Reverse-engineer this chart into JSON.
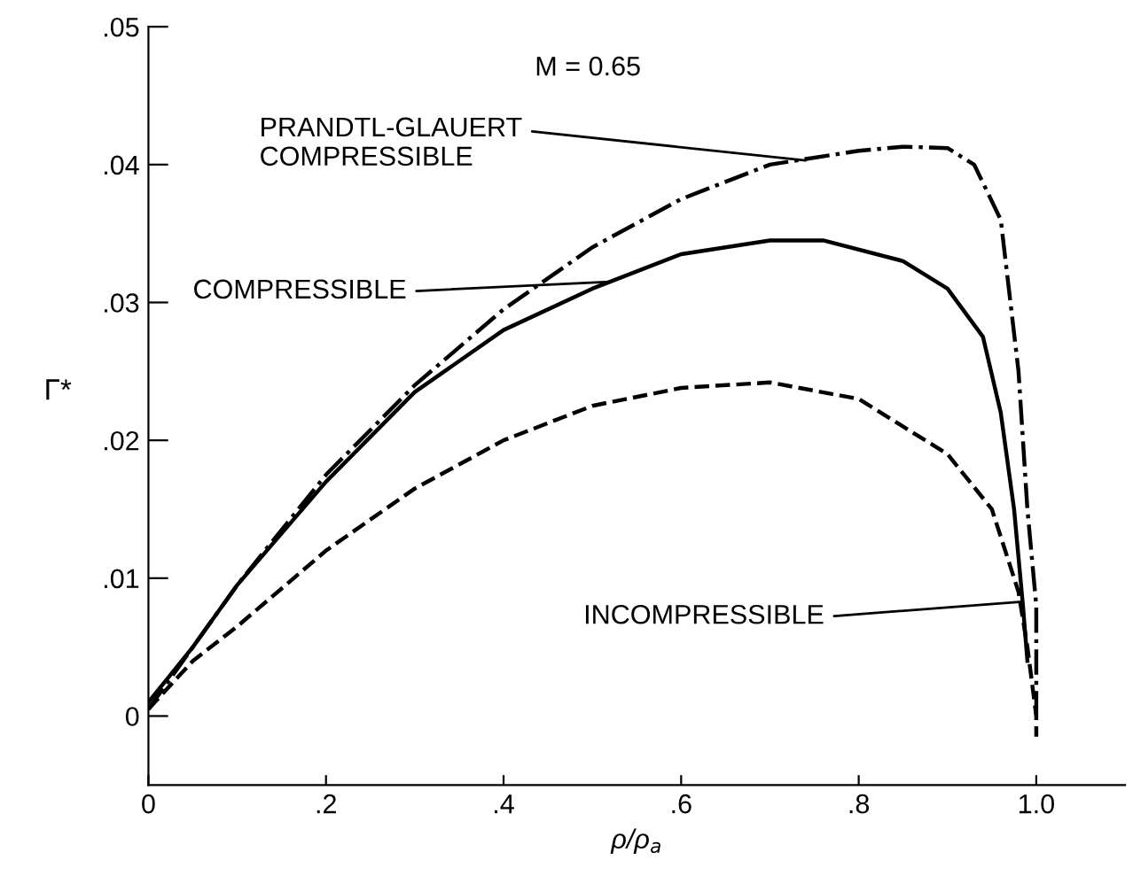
{
  "chart_data": {
    "type": "line",
    "xlabel": "ρ/ρ$_{a}$",
    "ylabel": "Γ*",
    "xlim": [
      0,
      1.1
    ],
    "xticks": [
      0,
      {
        "value": 0.2,
        "label": ".2"
      },
      {
        "value": 0.4,
        "label": ".4"
      },
      {
        "value": 0.6,
        "label": ".6"
      },
      {
        "value": 0.8,
        "label": ".8"
      },
      {
        "value": 1.0,
        "label": "1.0"
      }
    ],
    "ylim": [
      -0.005,
      0.05
    ],
    "yticks": [
      0,
      {
        "value": 0.01,
        "label": ".01"
      },
      {
        "value": 0.02,
        "label": ".02"
      },
      {
        "value": 0.03,
        "label": ".03"
      },
      {
        "value": 0.04,
        "label": ".04"
      },
      {
        "value": 0.05,
        "label": ".05"
      }
    ],
    "grid": false,
    "legend": false,
    "marker": "none",
    "series": [
      {
        "color": "#000000",
        "line_style": "dashdot",
        "x": [
          0,
          0.05,
          0.1,
          0.2,
          0.3,
          0.4,
          0.5,
          0.6,
          0.7,
          0.8,
          0.85,
          0.9,
          0.93,
          0.96,
          0.98,
          0.99,
          1.0,
          1.0
        ],
        "values": [
          0.0005,
          0.005,
          0.0095,
          0.0175,
          0.024,
          0.0295,
          0.034,
          0.0375,
          0.04,
          0.041,
          0.0413,
          0.0412,
          0.04,
          0.036,
          0.025,
          0.015,
          0.008,
          0.0
        ]
      },
      {
        "color": "#000000",
        "line_style": "solid",
        "x": [
          0,
          0.05,
          0.1,
          0.2,
          0.3,
          0.4,
          0.5,
          0.6,
          0.7,
          0.76,
          0.85,
          0.9,
          0.94,
          0.96,
          0.975,
          0.985,
          0.99
        ],
        "values": [
          0.001,
          0.005,
          0.0095,
          0.017,
          0.0235,
          0.028,
          0.031,
          0.0335,
          0.0345,
          0.0345,
          0.033,
          0.031,
          0.0275,
          0.022,
          0.015,
          0.008,
          0.004
        ]
      },
      {
        "color": "#000000",
        "line_style": "dashed",
        "x": [
          0,
          0.05,
          0.1,
          0.2,
          0.3,
          0.4,
          0.5,
          0.6,
          0.7,
          0.8,
          0.9,
          0.95,
          0.98,
          0.99,
          1.0,
          1.0
        ],
        "values": [
          0.0005,
          0.004,
          0.0065,
          0.012,
          0.0165,
          0.02,
          0.0225,
          0.0238,
          0.0242,
          0.023,
          0.019,
          0.015,
          0.009,
          0.005,
          0.0,
          -0.0015
        ]
      }
    ],
    "annotations": [
      "M = 0.65",
      {
        "text": "PRANDTL-GLAUERT\nCOMPRESSIBLE",
        "x": 0.74,
        "y": 0.0403
      },
      {
        "text": "COMPRESSIBLE",
        "x": 0.52,
        "y": 0.0315
      },
      {
        "text": "INCOMPRESSIBLE",
        "x": 0.984,
        "y": 0.0083
      }
    ]
  }
}
